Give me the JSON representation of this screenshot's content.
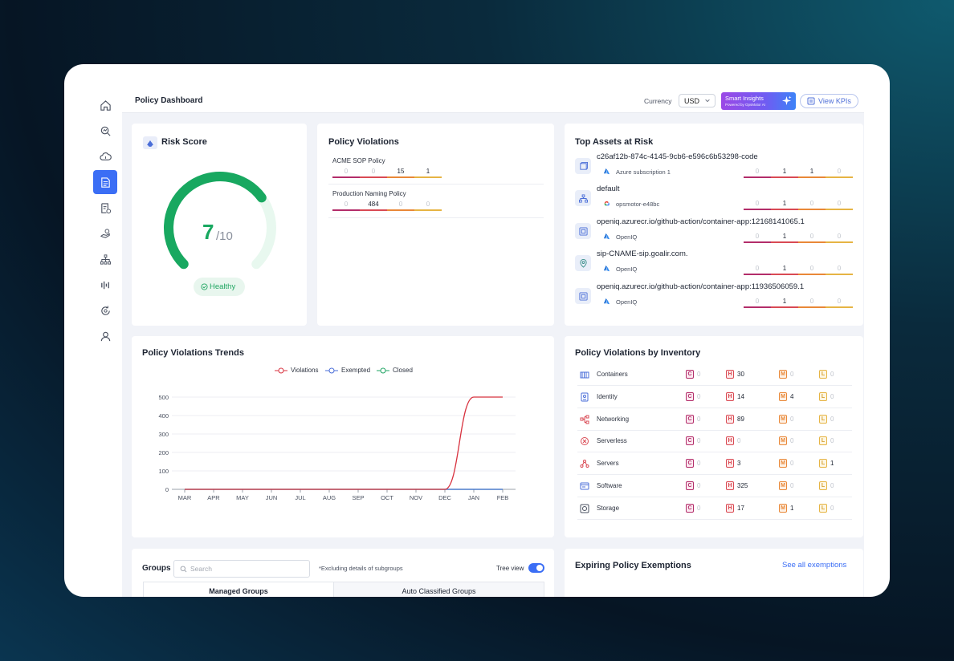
{
  "topbar": {
    "page_title": "Policy Dashboard",
    "currency_label": "Currency",
    "currency_value": "USD",
    "smart_insights_label": "Smart Insights",
    "smart_insights_sub": "Powered by OpsMotor AI",
    "view_kpis_label": "View KPIs"
  },
  "sidebar": {
    "items": [
      {
        "icon": "home-icon"
      },
      {
        "icon": "search-insights-icon"
      },
      {
        "icon": "cloud-shield-icon"
      },
      {
        "icon": "policy-document-icon",
        "active": true
      },
      {
        "icon": "compliance-document-icon"
      },
      {
        "icon": "hand-coin-icon"
      },
      {
        "icon": "hierarchy-icon"
      },
      {
        "icon": "signal-icon"
      },
      {
        "icon": "refresh-gear-icon"
      },
      {
        "icon": "user-icon"
      }
    ]
  },
  "risk": {
    "title": "Risk Score",
    "score": "7",
    "max": "/10",
    "score_fraction": 0.7,
    "status": "Healthy",
    "color": "#18a860"
  },
  "policy_violations": {
    "title": "Policy Violations",
    "policies": [
      {
        "name": "ACME SOP Policy",
        "counts": [
          "0",
          "0",
          "15",
          "1"
        ]
      },
      {
        "name": "Production Naming Policy",
        "counts": [
          "0",
          "484",
          "0",
          "0"
        ]
      }
    ]
  },
  "top_assets": {
    "title": "Top Assets at Risk",
    "assets": [
      {
        "name": "c26af12b-874c-4145-9cb6-e596c6b53298-code",
        "provider": "Azure subscription 1",
        "provider_icon": "azure-icon",
        "icon": "cube-icon",
        "counts": [
          "0",
          "1",
          "1",
          "0"
        ]
      },
      {
        "name": "default",
        "provider": "opsmotor-e48bc",
        "provider_icon": "gcp-icon",
        "icon": "hierarchy-icon",
        "counts": [
          "0",
          "1",
          "0",
          "0"
        ]
      },
      {
        "name": "openiq.azurecr.io/github-action/container-app:12168141065.1",
        "provider": "OpenIQ",
        "provider_icon": "azure-icon",
        "icon": "container-icon",
        "counts": [
          "0",
          "1",
          "0",
          "0"
        ]
      },
      {
        "name": "sip-CNAME-sip.goalir.com.",
        "provider": "OpenIQ",
        "provider_icon": "azure-icon",
        "icon": "location-icon",
        "counts": [
          "0",
          "1",
          "0",
          "0"
        ]
      },
      {
        "name": "openiq.azurecr.io/github-action/container-app:11936506059.1",
        "provider": "OpenIQ",
        "provider_icon": "azure-icon",
        "icon": "container-icon",
        "counts": [
          "0",
          "1",
          "0",
          "0"
        ]
      }
    ]
  },
  "trends": {
    "title": "Policy Violations Trends",
    "legend": [
      "Violations",
      "Exempted",
      "Closed"
    ]
  },
  "chart_data": {
    "type": "line",
    "title": "Policy Violations Trends",
    "x": [
      "MAR",
      "APR",
      "MAY",
      "JUN",
      "JUL",
      "AUG",
      "SEP",
      "OCT",
      "NOV",
      "DEC",
      "JAN",
      "FEB"
    ],
    "y_ticks": [
      "0",
      "100",
      "200",
      "300",
      "400",
      "500"
    ],
    "ylim": [
      0,
      500
    ],
    "series": [
      {
        "name": "Violations",
        "color": "#d8323f",
        "values": [
          0,
          0,
          0,
          0,
          0,
          0,
          0,
          0,
          0,
          0,
          500,
          500
        ]
      },
      {
        "name": "Exempted",
        "color": "#4a6ed8",
        "values": [
          0,
          0,
          0,
          0,
          0,
          0,
          0,
          0,
          0,
          0,
          0,
          0
        ]
      },
      {
        "name": "Closed",
        "color": "#1fa463",
        "values": [
          0,
          0,
          0,
          0,
          0,
          0,
          0,
          0,
          0,
          0,
          0,
          0
        ]
      }
    ],
    "grid": true,
    "legend_position": "top-center"
  },
  "inventory": {
    "title": "Policy Violations by Inventory",
    "badge_letters": [
      "C",
      "H",
      "M",
      "L"
    ],
    "rows": [
      {
        "label": "Containers",
        "icon": "containers-icon",
        "counts": [
          "0",
          "30",
          "0",
          "0"
        ]
      },
      {
        "label": "Identity",
        "icon": "identity-icon",
        "counts": [
          "0",
          "14",
          "4",
          "0"
        ]
      },
      {
        "label": "Networking",
        "icon": "networking-icon",
        "counts": [
          "0",
          "89",
          "0",
          "0"
        ]
      },
      {
        "label": "Serverless",
        "icon": "serverless-icon",
        "counts": [
          "0",
          "0",
          "0",
          "0"
        ]
      },
      {
        "label": "Servers",
        "icon": "servers-icon",
        "counts": [
          "0",
          "3",
          "0",
          "1"
        ]
      },
      {
        "label": "Software",
        "icon": "software-icon",
        "counts": [
          "0",
          "325",
          "0",
          "0"
        ]
      },
      {
        "label": "Storage",
        "icon": "storage-icon",
        "counts": [
          "0",
          "17",
          "1",
          "0"
        ]
      }
    ]
  },
  "groups": {
    "title": "Groups",
    "search_placeholder": "Search",
    "note": "*Excluding details of subgroups",
    "tree_view_label": "Tree view",
    "tree_view_on": true,
    "tabs": [
      "Managed Groups",
      "Auto Classified Groups"
    ]
  },
  "exemptions": {
    "title": "Expiring Policy Exemptions",
    "see_all_label": "See all exemptions"
  }
}
